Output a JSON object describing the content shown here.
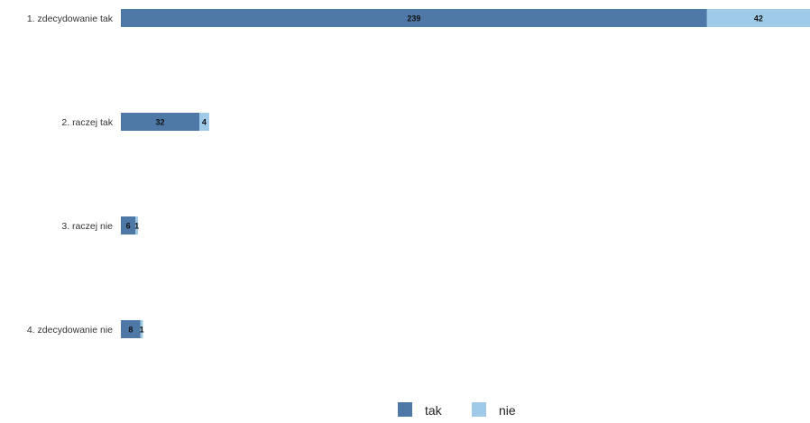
{
  "chart_data": {
    "type": "bar",
    "orientation": "horizontal",
    "stacked": true,
    "categories": [
      "1. zdecydowanie tak",
      "2. raczej tak",
      "3. raczej nie",
      "4. zdecydowanie nie"
    ],
    "series": [
      {
        "name": "tak",
        "values": [
          239,
          32,
          6,
          8
        ],
        "color": "#4e79a7"
      },
      {
        "name": "nie",
        "values": [
          42,
          4,
          1,
          1
        ],
        "color": "#a0cbe8"
      }
    ],
    "xlim": [
      0,
      281
    ],
    "grid": false,
    "legend_position": "bottom-center"
  }
}
